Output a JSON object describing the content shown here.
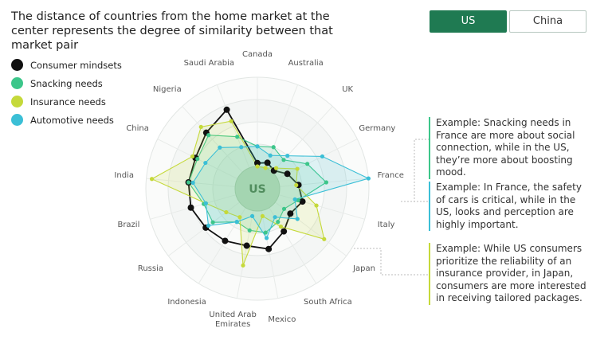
{
  "title": "The distance of countries from the home market at the center represents the degree of similarity between that market pair",
  "buttons": [
    "US",
    "China"
  ],
  "chart_data": {
    "type": "radar",
    "center_label": "US",
    "categories": [
      "Canada",
      "Australia",
      "UK",
      "Germany",
      "France",
      "Italy",
      "Japan",
      "South Africa",
      "Mexico",
      "United Arab Emirates",
      "Indonesia",
      "Russia",
      "Brazil",
      "India",
      "China",
      "Nigeria",
      "Saudi Arabia"
    ],
    "rlim": [
      0,
      100
    ],
    "rticks": [
      20,
      40,
      60,
      80,
      100
    ],
    "series": [
      {
        "name": "Consumer mindsets",
        "color": "#111111",
        "values": [
          23,
          25,
          22,
          30,
          37,
          42,
          37,
          45,
          55,
          52,
          55,
          58,
          62,
          62,
          62,
          68,
          76
        ]
      },
      {
        "name": "Snacking needs",
        "color": "#3cc68a",
        "values": [
          38,
          40,
          35,
          50,
          62,
          38,
          30,
          35,
          40,
          38,
          35,
          50,
          50,
          62,
          60,
          65,
          50
        ]
      },
      {
        "name": "Insurance needs",
        "color": "#c5d93a",
        "values": [
          20,
          20,
          25,
          40,
          35,
          55,
          75,
          40,
          25,
          70,
          30,
          35,
          48,
          95,
          65,
          75,
          65
        ]
      },
      {
        "name": "Automotive needs",
        "color": "#3bbfd6",
        "values": [
          38,
          32,
          40,
          65,
          100,
          35,
          45,
          30,
          45,
          25,
          35,
          55,
          48,
          58,
          52,
          50,
          40
        ]
      }
    ]
  },
  "annotations": [
    "Example: Snacking needs in France are more about social connection, while in the US, they’re more about boosting mood.",
    "Example: In France, the safety of cars is critical, while in the US, looks and perception are highly important.",
    "Example: While US consumers prioritize the reliability of an insurance provider, in Japan, consumers are more interested in receiving tailored packages."
  ]
}
